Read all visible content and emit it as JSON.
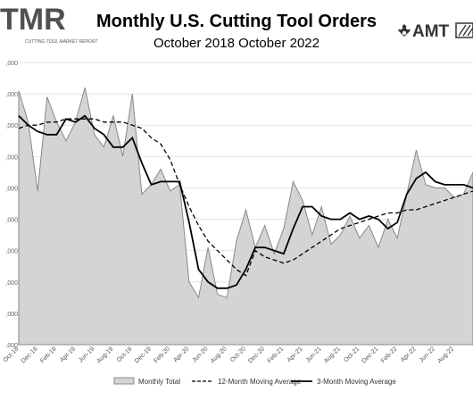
{
  "header": {
    "logo_text": "TMR",
    "logo_subtext": "CUTTING TOOL MARKET REPORT",
    "title": "Monthly U.S. Cutting Tool Orders",
    "subtitle": "October 2018 October 2022",
    "amt_logo_text": "AMT"
  },
  "colors": {
    "area_fill": "#d4d4d4",
    "area_stroke": "#888888",
    "line": "#000000",
    "grid": "#e6e6e6"
  },
  "chart_data": {
    "type": "area",
    "title": "Monthly U.S. Cutting Tool Orders",
    "subtitle": "October 2018 October 2022",
    "ylabel": "",
    "xlabel": "",
    "ylim": [
      150000000,
      240000000
    ],
    "grid": true,
    "legend_placement": "bottom",
    "y_tick_labels": [
      ",000",
      ",000",
      ",000",
      ",000",
      ",000",
      ",000",
      ",000",
      ",000",
      ",000",
      ",000"
    ],
    "x_tick_labels": [
      "Oct-18",
      "Dec-18",
      "Feb-19",
      "Apr-19",
      "Jun-19",
      "Aug-19",
      "Oct-19",
      "Dec-19",
      "Feb-20",
      "Apr-20",
      "Jun-20",
      "Aug-20",
      "Oct-20",
      "Dec-20",
      "Feb-21",
      "Apr-21",
      "Jun-21",
      "Aug-21",
      "Oct-21",
      "Dec-21",
      "Feb-22",
      "Apr-22",
      "Jun-22",
      "Aug-22"
    ],
    "x": [
      "Oct-18",
      "Nov-18",
      "Dec-18",
      "Jan-19",
      "Feb-19",
      "Mar-19",
      "Apr-19",
      "May-19",
      "Jun-19",
      "Jul-19",
      "Aug-19",
      "Sep-19",
      "Oct-19",
      "Nov-19",
      "Dec-19",
      "Jan-20",
      "Feb-20",
      "Mar-20",
      "Apr-20",
      "May-20",
      "Jun-20",
      "Jul-20",
      "Aug-20",
      "Sep-20",
      "Oct-20",
      "Nov-20",
      "Dec-20",
      "Jan-21",
      "Feb-21",
      "Mar-21",
      "Apr-21",
      "May-21",
      "Jun-21",
      "Jul-21",
      "Aug-21",
      "Sep-21",
      "Oct-21",
      "Nov-21",
      "Dec-21",
      "Jan-22",
      "Feb-22",
      "Mar-22",
      "Apr-22",
      "May-22",
      "Jun-22",
      "Jul-22",
      "Aug-22",
      "Sep-22",
      "Oct-22"
    ],
    "series": [
      {
        "name": "Monthly Total",
        "values": [
          231,
          221,
          199,
          229,
          221,
          215,
          221,
          232,
          217,
          213,
          223,
          210,
          230,
          198,
          201,
          206,
          199,
          201,
          170,
          165,
          181,
          166,
          165,
          183,
          193,
          181,
          188,
          179,
          187,
          202,
          196,
          185,
          194,
          182,
          185,
          191,
          184,
          188,
          181,
          190,
          184,
          198,
          212,
          201,
          200,
          200,
          197,
          198,
          205
        ]
      },
      {
        "name": "12-Month Moving Average",
        "values": [
          219,
          220,
          220,
          221,
          221,
          222,
          222,
          222,
          222,
          221,
          221,
          221,
          220,
          219,
          216,
          214,
          209,
          201,
          194,
          188,
          183,
          180,
          177,
          174,
          172,
          180,
          178,
          177,
          176,
          177,
          179,
          181,
          183,
          185,
          187,
          188,
          189,
          190,
          191,
          192,
          192,
          193,
          193,
          194,
          195,
          196,
          197,
          198,
          199
        ]
      },
      {
        "name": "3-Month Moving Average",
        "values": [
          223,
          220,
          218,
          217,
          217,
          222,
          221,
          223,
          219,
          217,
          213,
          213,
          216,
          208,
          201,
          202,
          202,
          202,
          189,
          174,
          170,
          168,
          168,
          169,
          174,
          181,
          181,
          180,
          179,
          187,
          194,
          194,
          191,
          190,
          190,
          192,
          190,
          191,
          190,
          187,
          189,
          198,
          203,
          205,
          202,
          201,
          201,
          201,
          200
        ]
      }
    ]
  }
}
